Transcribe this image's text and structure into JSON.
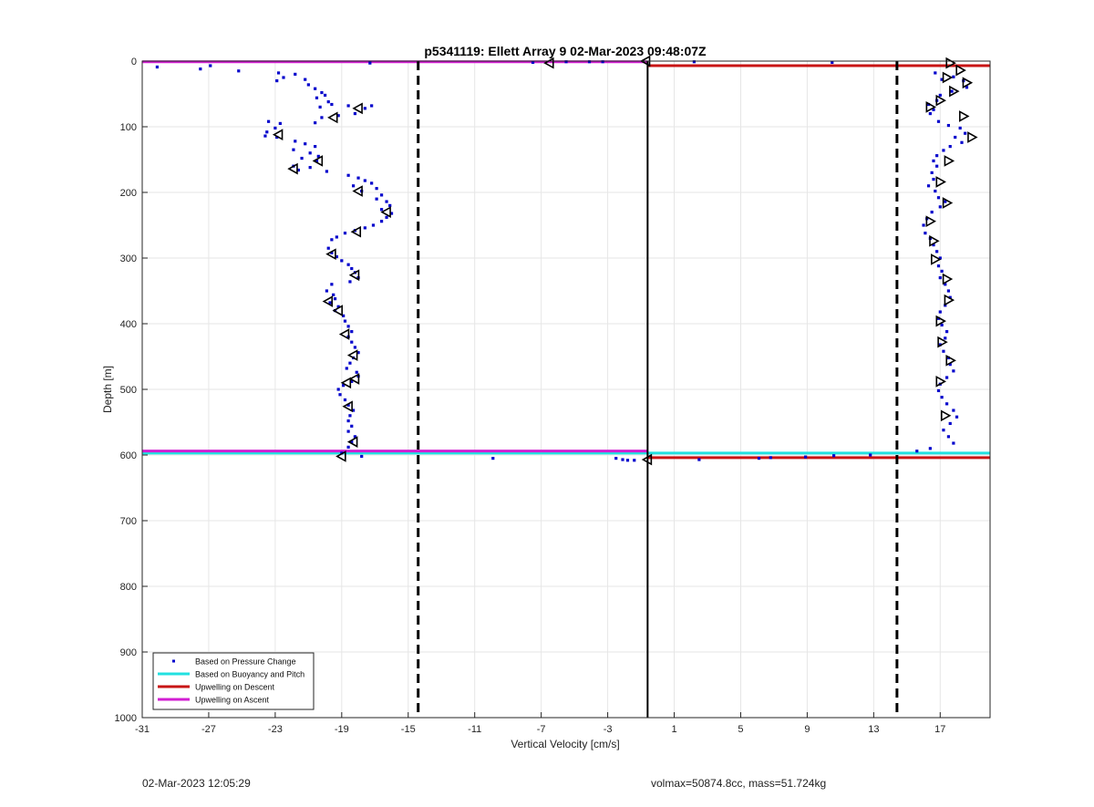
{
  "chart_data": {
    "type": "scatter",
    "title": "p5341119: Ellett Array 9 02-Mar-2023 09:48:07Z",
    "xlabel": "Vertical Velocity [cm/s]",
    "ylabel": "Depth [m]",
    "xlim": [
      -31,
      20
    ],
    "ylim": [
      0,
      1000
    ],
    "y_reversed": true,
    "grid": true,
    "xticks": [
      -31,
      -27,
      -23,
      -19,
      -15,
      -11,
      -7,
      -3,
      1,
      5,
      9,
      13,
      17
    ],
    "yticks": [
      0,
      100,
      200,
      300,
      400,
      500,
      600,
      700,
      800,
      900,
      1000
    ],
    "legend_position": "bottom-left",
    "colors": {
      "pressure": "#0000cc",
      "buoyancy": "#22e0e0",
      "descent": "#c81414",
      "ascent": "#d21ed2",
      "axis": "#262626",
      "grid": "#e6e6e6"
    },
    "legend": [
      {
        "key": "pressure",
        "label": "Based on Pressure Change",
        "style": "dot"
      },
      {
        "key": "buoyancy",
        "label": "Based on Buoyancy and Pitch",
        "style": "line"
      },
      {
        "key": "descent",
        "label": "Upwelling on Descent",
        "style": "line"
      },
      {
        "key": "ascent",
        "label": "Upwelling on Ascent",
        "style": "line"
      }
    ],
    "reference_lines": {
      "vertical_solid": [
        -0.6
      ],
      "vertical_dashed": [
        -14.4,
        14.4
      ],
      "horizontal": [
        {
          "series": "buoyancy",
          "y": 597,
          "x_from": -31,
          "x_to": 20
        },
        {
          "series": "ascent",
          "y": 594,
          "x_from": -31,
          "x_to": -0.6
        },
        {
          "series": "ascent",
          "y": 1,
          "x_from": -31,
          "x_to": -0.6
        },
        {
          "series": "descent",
          "y": 7,
          "x_from": -0.6,
          "x_to": 20
        },
        {
          "series": "descent",
          "y": 604,
          "x_from": -0.6,
          "x_to": 20
        }
      ]
    },
    "series": [
      {
        "name": "Based on Pressure Change",
        "points": [
          [
            -30.1,
            9
          ],
          [
            -27.5,
            12
          ],
          [
            -26.9,
            7
          ],
          [
            -25.2,
            15
          ],
          [
            -17.3,
            3
          ],
          [
            -7.5,
            2
          ],
          [
            -5.5,
            1
          ],
          [
            -4.1,
            1
          ],
          [
            -3.3,
            1
          ],
          [
            2.2,
            1
          ],
          [
            10.5,
            2
          ],
          [
            -22.8,
            18
          ],
          [
            -22.5,
            25
          ],
          [
            -22.9,
            30
          ],
          [
            -21.8,
            20
          ],
          [
            -21.2,
            28
          ],
          [
            -21.0,
            36
          ],
          [
            -20.6,
            42
          ],
          [
            -20.2,
            48
          ],
          [
            -20.5,
            56
          ],
          [
            -20.0,
            52
          ],
          [
            -19.8,
            62
          ],
          [
            -20.3,
            70
          ],
          [
            -19.6,
            66
          ],
          [
            -18.6,
            68
          ],
          [
            -17.6,
            72
          ],
          [
            -17.2,
            68
          ],
          [
            -18.2,
            80
          ],
          [
            -19.2,
            83
          ],
          [
            -20.2,
            86
          ],
          [
            -20.6,
            94
          ],
          [
            -23.4,
            92
          ],
          [
            -22.7,
            95
          ],
          [
            -23.0,
            102
          ],
          [
            -23.5,
            108
          ],
          [
            -22.9,
            116
          ],
          [
            -23.6,
            114
          ],
          [
            -21.8,
            122
          ],
          [
            -21.2,
            126
          ],
          [
            -20.6,
            130
          ],
          [
            -21.9,
            135
          ],
          [
            -20.9,
            140
          ],
          [
            -20.4,
            145
          ],
          [
            -21.4,
            148
          ],
          [
            -20.5,
            152
          ],
          [
            -21.9,
            160
          ],
          [
            -21.6,
            166
          ],
          [
            -20.9,
            162
          ],
          [
            -19.9,
            168
          ],
          [
            -18.6,
            174
          ],
          [
            -18.0,
            178
          ],
          [
            -17.6,
            182
          ],
          [
            -17.2,
            186
          ],
          [
            -18.3,
            190
          ],
          [
            -16.9,
            194
          ],
          [
            -17.8,
            198
          ],
          [
            -16.6,
            204
          ],
          [
            -16.9,
            210
          ],
          [
            -16.3,
            214
          ],
          [
            -16.1,
            220
          ],
          [
            -16.6,
            226
          ],
          [
            -16.0,
            232
          ],
          [
            -16.3,
            238
          ],
          [
            -16.6,
            244
          ],
          [
            -17.1,
            250
          ],
          [
            -17.6,
            254
          ],
          [
            -18.2,
            258
          ],
          [
            -18.8,
            262
          ],
          [
            -19.3,
            268
          ],
          [
            -19.6,
            272
          ],
          [
            -19.8,
            285
          ],
          [
            -19.6,
            292
          ],
          [
            -19.3,
            298
          ],
          [
            -19.0,
            304
          ],
          [
            -18.6,
            310
          ],
          [
            -18.4,
            316
          ],
          [
            -18.2,
            322
          ],
          [
            -18.0,
            330
          ],
          [
            -18.5,
            336
          ],
          [
            -19.6,
            340
          ],
          [
            -19.9,
            350
          ],
          [
            -19.5,
            356
          ],
          [
            -19.4,
            362
          ],
          [
            -19.7,
            368
          ],
          [
            -19.2,
            374
          ],
          [
            -19.4,
            380
          ],
          [
            -18.9,
            388
          ],
          [
            -18.8,
            396
          ],
          [
            -18.6,
            404
          ],
          [
            -18.4,
            412
          ],
          [
            -18.6,
            420
          ],
          [
            -18.4,
            428
          ],
          [
            -18.2,
            436
          ],
          [
            -18.0,
            444
          ],
          [
            -18.3,
            452
          ],
          [
            -18.5,
            460
          ],
          [
            -18.7,
            468
          ],
          [
            -18.1,
            474
          ],
          [
            -18.0,
            480
          ],
          [
            -18.4,
            488
          ],
          [
            -18.9,
            494
          ],
          [
            -19.2,
            500
          ],
          [
            -19.1,
            508
          ],
          [
            -18.8,
            516
          ],
          [
            -18.6,
            524
          ],
          [
            -18.3,
            532
          ],
          [
            -18.5,
            540
          ],
          [
            -18.6,
            548
          ],
          [
            -18.4,
            556
          ],
          [
            -18.6,
            564
          ],
          [
            -18.2,
            572
          ],
          [
            -18.4,
            580
          ],
          [
            -18.6,
            588
          ],
          [
            -19.0,
            597
          ],
          [
            -17.8,
            602
          ],
          [
            -9.9,
            605
          ],
          [
            -2.5,
            605
          ],
          [
            -2.1,
            607
          ],
          [
            -1.8,
            608
          ],
          [
            -1.4,
            608
          ],
          [
            2.5,
            607
          ],
          [
            6.1,
            605
          ],
          [
            6.8,
            604
          ],
          [
            8.9,
            603
          ],
          [
            10.6,
            601
          ],
          [
            12.8,
            600
          ],
          [
            15.6,
            594
          ],
          [
            16.4,
            590
          ],
          [
            16.7,
            18
          ],
          [
            17.1,
            28
          ],
          [
            17.8,
            24
          ],
          [
            18.4,
            30
          ],
          [
            18.6,
            40
          ],
          [
            17.7,
            46
          ],
          [
            17.0,
            52
          ],
          [
            16.8,
            60
          ],
          [
            16.3,
            66
          ],
          [
            16.6,
            74
          ],
          [
            16.4,
            80
          ],
          [
            16.9,
            92
          ],
          [
            17.5,
            98
          ],
          [
            18.2,
            102
          ],
          [
            18.5,
            110
          ],
          [
            17.9,
            116
          ],
          [
            18.3,
            124
          ],
          [
            17.6,
            130
          ],
          [
            17.2,
            136
          ],
          [
            16.8,
            144
          ],
          [
            16.6,
            152
          ],
          [
            16.8,
            160
          ],
          [
            16.5,
            170
          ],
          [
            16.6,
            180
          ],
          [
            16.3,
            190
          ],
          [
            16.7,
            198
          ],
          [
            16.9,
            208
          ],
          [
            17.3,
            214
          ],
          [
            17.0,
            222
          ],
          [
            16.5,
            230
          ],
          [
            16.2,
            240
          ],
          [
            16.0,
            250
          ],
          [
            16.1,
            262
          ],
          [
            16.4,
            270
          ],
          [
            16.6,
            280
          ],
          [
            16.8,
            290
          ],
          [
            17.0,
            300
          ],
          [
            16.9,
            312
          ],
          [
            17.1,
            320
          ],
          [
            17.0,
            330
          ],
          [
            17.3,
            340
          ],
          [
            17.5,
            350
          ],
          [
            17.6,
            360
          ],
          [
            17.3,
            372
          ],
          [
            17.0,
            382
          ],
          [
            16.9,
            392
          ],
          [
            17.1,
            402
          ],
          [
            17.4,
            412
          ],
          [
            17.3,
            422
          ],
          [
            17.0,
            432
          ],
          [
            17.2,
            442
          ],
          [
            17.5,
            452
          ],
          [
            17.6,
            462
          ],
          [
            17.8,
            472
          ],
          [
            17.4,
            482
          ],
          [
            17.0,
            492
          ],
          [
            16.9,
            502
          ],
          [
            17.1,
            512
          ],
          [
            17.4,
            522
          ],
          [
            17.8,
            532
          ],
          [
            18.0,
            542
          ],
          [
            17.6,
            552
          ],
          [
            17.2,
            562
          ],
          [
            17.5,
            572
          ],
          [
            17.8,
            582
          ]
        ]
      },
      {
        "name": "markers",
        "points": [
          [
            -6.5,
            3
          ],
          [
            -0.7,
            0
          ],
          [
            17.6,
            3
          ],
          [
            18.2,
            14
          ],
          [
            17.4,
            25
          ],
          [
            18.6,
            33
          ],
          [
            17.8,
            46
          ],
          [
            17.0,
            60
          ],
          [
            16.4,
            70
          ],
          [
            18.4,
            84
          ],
          [
            18.9,
            116
          ],
          [
            17.5,
            152
          ],
          [
            17.0,
            184
          ],
          [
            17.4,
            216
          ],
          [
            16.4,
            244
          ],
          [
            16.6,
            274
          ],
          [
            16.7,
            302
          ],
          [
            17.4,
            332
          ],
          [
            17.5,
            364
          ],
          [
            17.0,
            396
          ],
          [
            17.1,
            428
          ],
          [
            17.6,
            456
          ],
          [
            17.0,
            488
          ],
          [
            17.3,
            540
          ],
          [
            -18.0,
            72
          ],
          [
            -19.5,
            86
          ],
          [
            -22.8,
            112
          ],
          [
            -20.4,
            152
          ],
          [
            -21.9,
            164
          ],
          [
            -18.0,
            198
          ],
          [
            -16.3,
            230
          ],
          [
            -18.1,
            260
          ],
          [
            -19.6,
            294
          ],
          [
            -18.2,
            326
          ],
          [
            -19.8,
            366
          ],
          [
            -19.2,
            380
          ],
          [
            -18.8,
            416
          ],
          [
            -18.3,
            448
          ],
          [
            -18.2,
            484
          ],
          [
            -18.7,
            490
          ],
          [
            -18.6,
            526
          ],
          [
            -18.3,
            580
          ],
          [
            -19.0,
            602
          ],
          [
            -0.6,
            607
          ]
        ]
      }
    ]
  },
  "footer": {
    "timestamp": "02-Mar-2023 12:05:29",
    "info": "volmax=50874.8cc, mass=51.724kg"
  }
}
